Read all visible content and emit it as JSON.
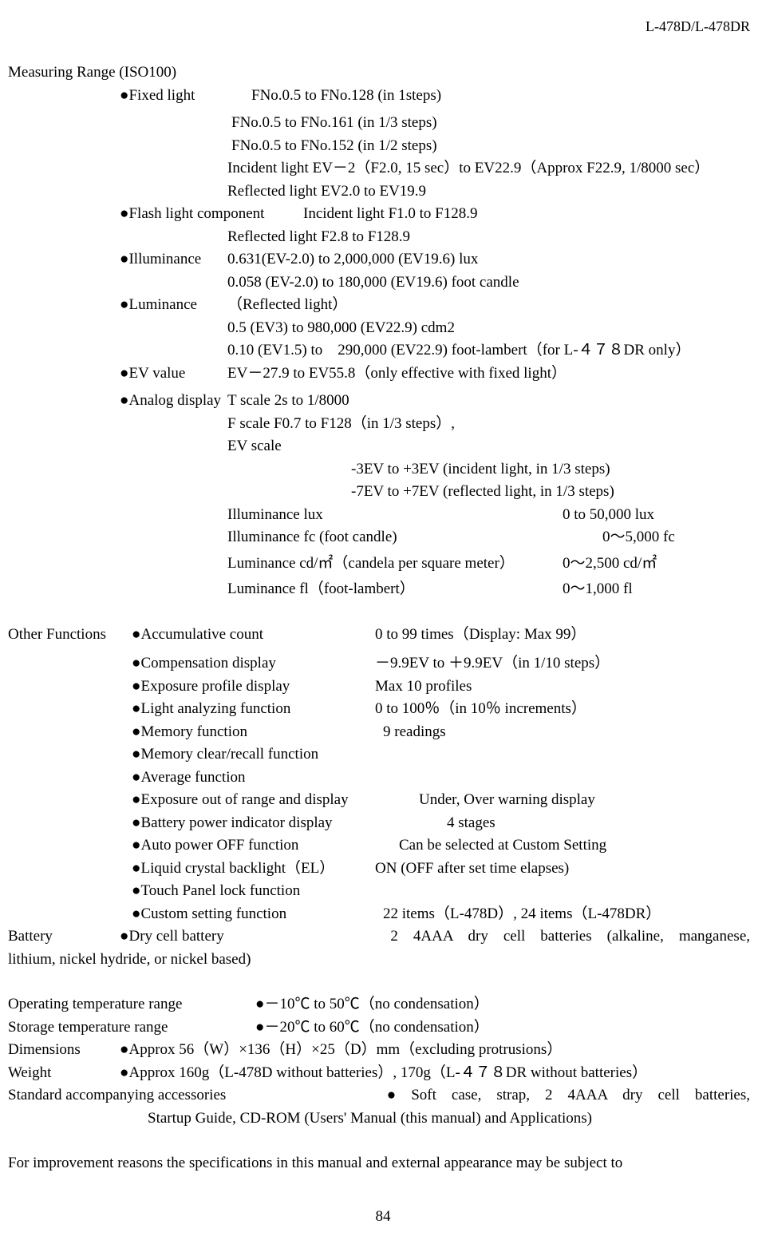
{
  "header": {
    "model": "L-478D/L-478DR"
  },
  "measuring_range": {
    "title": "Measuring Range (ISO100)",
    "fixed_light": {
      "label": "Fixed light",
      "lines": [
        "FNo.0.5 to FNo.128 (in 1steps)",
        "FNo.0.5 to FNo.161 (in 1/3 steps)",
        "FNo.0.5 to FNo.152 (in 1/2 steps)",
        "Incident light EV－2（F2.0, 15 sec）to EV22.9（Approx F22.9, 1/8000 sec）",
        "Reflected light EV2.0 to EV19.9"
      ]
    },
    "flash_light": {
      "label": "Flash light component",
      "value1": "Incident light F1.0 to F128.9",
      "value2": "Reflected light F2.8 to F128.9"
    },
    "illuminance": {
      "label": "Illuminance",
      "line1": "0.631(EV-2.0) to 2,000,000 (EV19.6) lux",
      "line2": "0.058 (EV-2.0) to 180,000 (EV19.6) foot candle"
    },
    "luminance": {
      "label": "Luminance",
      "line1": "（Reflected light）",
      "line2": "0.5 (EV3) to 980,000 (EV22.9) cdm2",
      "line3": "0.10 (EV1.5) to　290,000 (EV22.9) foot-lambert（for L-４７８DR only）"
    },
    "ev_value": {
      "label": "EV value",
      "value": "EV－27.9 to EV55.8（only effective with fixed light）"
    },
    "analog": {
      "label": "Analog display",
      "lines": [
        "T scale 2s to 1/8000",
        "F scale F0.7 to F128（in 1/3 steps）,",
        "EV scale"
      ],
      "ev_lines": [
        "-3EV to +3EV (incident light, in 1/3 steps)",
        "-7EV to +7EV (reflected light, in 1/3 steps)"
      ],
      "table": [
        {
          "l": "Illuminance lux",
          "r": "0 to 50,000 lux"
        },
        {
          "l": "Illuminance fc (foot candle)",
          "r": "0～5,000 fc"
        },
        {
          "l": "Luminance cd/㎡（candela per square meter）",
          "r": "0～2,500 cd/㎡"
        },
        {
          "l": "Luminance fl（foot-lambert）",
          "r": "0～1,000 fl"
        }
      ]
    }
  },
  "other_functions": {
    "title": "Other Functions",
    "items": [
      {
        "l": "Accumulative count",
        "r": "0 to 99 times（Display: Max 99）"
      },
      {
        "l": "Compensation display",
        "r": "－9.9EV to ＋9.9EV（in 1/10 steps）"
      },
      {
        "l": "Exposure profile display",
        "r": "Max 10 profiles"
      },
      {
        "l": "Light analyzing function",
        "r": "0 to 100％（in 10％ increments）"
      },
      {
        "l": "Memory function",
        "r": "9 readings"
      },
      {
        "l": "Memory clear/recall function",
        "r": ""
      },
      {
        "l": "Average function",
        "r": ""
      },
      {
        "l": "Exposure out of range and display",
        "r": "Under, Over warning display"
      },
      {
        "l": "Battery power indicator display",
        "r": "4 stages"
      },
      {
        "l": "Auto power OFF function",
        "r": "Can be selected at Custom Setting"
      },
      {
        "l": "Liquid crystal backlight（EL）",
        "r": "ON (OFF after set time elapses)"
      },
      {
        "l": "Touch Panel lock function",
        "r": ""
      },
      {
        "l": "Custom setting function",
        "r": "22 items（L-478D）, 24 items（L-478DR）"
      }
    ]
  },
  "battery": {
    "title": "Battery",
    "label": "Dry cell battery",
    "value_a": "2　4AAA　dry　cell　batteries　(alkaline,　manganese,",
    "value_b": "lithium, nickel hydride, or nickel based)"
  },
  "temp_op": {
    "title": "Operating temperature range",
    "value": "－10℃ to 50℃（no condensation）"
  },
  "temp_st": {
    "title": "Storage temperature range",
    "value": "－20℃ to 60℃（no condensation）"
  },
  "dimensions": {
    "title": "Dimensions",
    "value": "Approx 56（W）×136（H）×25（D）mm（excluding protrusions）"
  },
  "weight": {
    "title": "Weight",
    "value": "Approx 160g（L-478D without batteries）, 170g（L-４７８DR without batteries）"
  },
  "accessories": {
    "title": "Standard accompanying accessories",
    "line1": "●　Soft　case,　strap,　2　4AAA　dry　cell　batteries,",
    "line2": "Startup Guide, CD-ROM (Users' Manual (this manual) and Applications)"
  },
  "footer_note": "For improvement reasons the specifications in this manual and external appearance may be subject to",
  "page_number": "84"
}
